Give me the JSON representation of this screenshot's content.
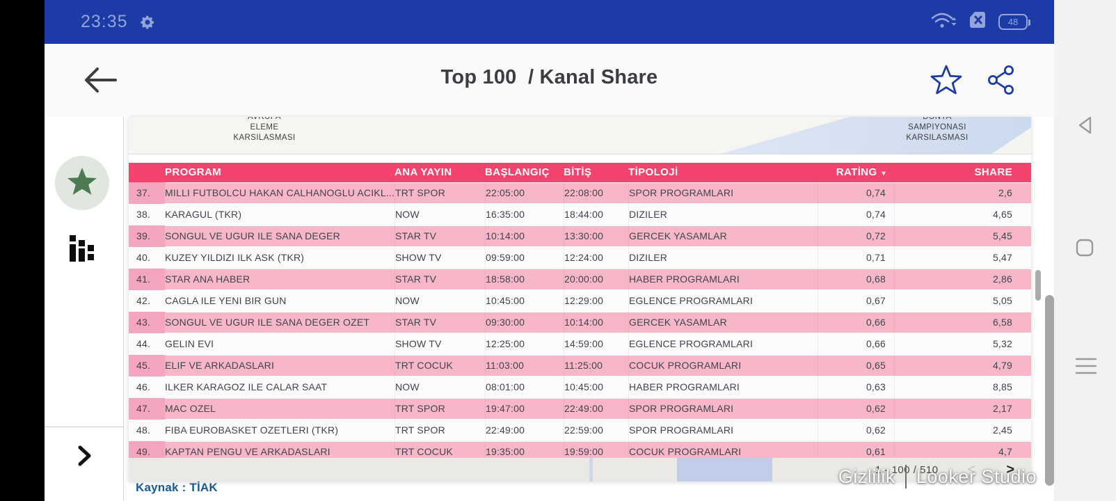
{
  "status_bar": {
    "time": "23:35",
    "battery": "48"
  },
  "app_bar": {
    "title": "Top 100  / Kanal Share"
  },
  "chart_remnant": {
    "left_label": [
      "AVRUPA",
      "ELEME",
      "KARSILASMASI"
    ],
    "right_label": [
      "DUNYA",
      "SAMPIYONASI",
      "KARSILASMASI"
    ]
  },
  "table": {
    "columns": [
      "PROGRAM",
      "ANA YAYIN",
      "BAŞLANGIÇ",
      "BİTİŞ",
      "TİPOLOJİ",
      "RATİNG",
      "SHARE"
    ],
    "sort_indicator": "▾",
    "rows": [
      {
        "num": "37.",
        "program": "MILLI FUTBOLCU HAKAN CALHANOGLU ACIKL...",
        "channel": "TRT SPOR",
        "start": "22:05:00",
        "end": "22:08:00",
        "type": "SPOR PROGRAMLARI",
        "rating": "0,74",
        "share": "2,6"
      },
      {
        "num": "38.",
        "program": "KARAGUL (TKR)",
        "channel": "NOW",
        "start": "16:35:00",
        "end": "18:44:00",
        "type": "DIZILER",
        "rating": "0,74",
        "share": "4,65"
      },
      {
        "num": "39.",
        "program": "SONGUL VE UGUR ILE SANA DEGER",
        "channel": "STAR TV",
        "start": "10:14:00",
        "end": "13:30:00",
        "type": "GERCEK YASAMLAR",
        "rating": "0,72",
        "share": "5,45"
      },
      {
        "num": "40.",
        "program": "KUZEY YILDIZI ILK ASK (TKR)",
        "channel": "SHOW TV",
        "start": "09:59:00",
        "end": "12:24:00",
        "type": "DIZILER",
        "rating": "0,71",
        "share": "5,47"
      },
      {
        "num": "41.",
        "program": "STAR ANA HABER",
        "channel": "STAR TV",
        "start": "18:58:00",
        "end": "20:00:00",
        "type": "HABER PROGRAMLARI",
        "rating": "0,68",
        "share": "2,86"
      },
      {
        "num": "42.",
        "program": "CAGLA ILE YENI BIR GUN",
        "channel": "NOW",
        "start": "10:45:00",
        "end": "12:29:00",
        "type": "EGLENCE PROGRAMLARI",
        "rating": "0,67",
        "share": "5,05"
      },
      {
        "num": "43.",
        "program": "SONGUL VE UGUR ILE SANA DEGER OZET",
        "channel": "STAR TV",
        "start": "09:30:00",
        "end": "10:14:00",
        "type": "GERCEK YASAMLAR",
        "rating": "0,66",
        "share": "6,58"
      },
      {
        "num": "44.",
        "program": "GELIN EVI",
        "channel": "SHOW TV",
        "start": "12:25:00",
        "end": "14:59:00",
        "type": "EGLENCE PROGRAMLARI",
        "rating": "0,66",
        "share": "5,32"
      },
      {
        "num": "45.",
        "program": "ELIF VE ARKADASLARI",
        "channel": "TRT COCUK",
        "start": "11:03:00",
        "end": "11:25:00",
        "type": "COCUK PROGRAMLARI",
        "rating": "0,65",
        "share": "4,79"
      },
      {
        "num": "46.",
        "program": "ILKER KARAGOZ ILE CALAR SAAT",
        "channel": "NOW",
        "start": "08:01:00",
        "end": "10:45:00",
        "type": "HABER PROGRAMLARI",
        "rating": "0,63",
        "share": "8,85"
      },
      {
        "num": "47.",
        "program": "MAC OZEL",
        "channel": "TRT SPOR",
        "start": "19:47:00",
        "end": "22:49:00",
        "type": "SPOR PROGRAMLARI",
        "rating": "0,62",
        "share": "2,17"
      },
      {
        "num": "48.",
        "program": "FIBA EUROBASKET OZETLERI (TKR)",
        "channel": "TRT SPOR",
        "start": "22:49:00",
        "end": "22:59:00",
        "type": "SPOR PROGRAMLARI",
        "rating": "0,62",
        "share": "2,45"
      },
      {
        "num": "49.",
        "program": "KAPTAN PENGU VE ARKADASLARI",
        "channel": "TRT COCUK",
        "start": "19:35:00",
        "end": "19:59:00",
        "type": "COCUK PROGRAMLARI",
        "rating": "0,61",
        "share": "4,7"
      }
    ]
  },
  "footer": {
    "pagination": "1 - 100 / 510",
    "prev_icon": "<",
    "next_icon": ">",
    "source": "Kaynak : TİAK",
    "watermark_left": "Gizlilik",
    "watermark_right": "Looker Studio"
  },
  "colors": {
    "accent_blue": "#1d3ba6",
    "header_pink": "#f4436d",
    "row_pink": "#f7b7c9",
    "source_blue": "#175a96"
  }
}
